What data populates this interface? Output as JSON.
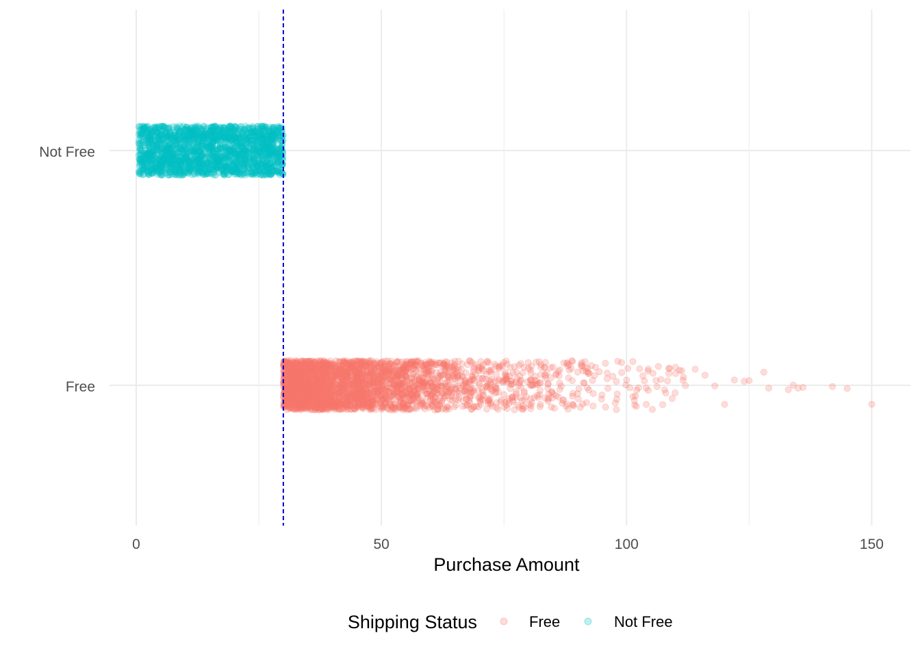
{
  "chart_data": {
    "type": "scatter",
    "subtype": "jitter-strip",
    "title": "",
    "xlabel": "Purchase Amount",
    "ylabel": "",
    "xlim": [
      -3.5,
      158
    ],
    "x_ticks": [
      0,
      50,
      100,
      150
    ],
    "x_tick_labels": [
      "0",
      "50",
      "100",
      "150"
    ],
    "categories": [
      "Free",
      "Not Free"
    ],
    "grid": true,
    "reference_line": {
      "x": 30,
      "style": "dashed",
      "color": "#0000cd"
    },
    "point_alpha": 0.25,
    "series": [
      {
        "name": "Free",
        "category": "Free",
        "color": "#F8766D",
        "x_range": [
          30,
          150
        ],
        "count_estimate": 3000,
        "distribution": "right-skewed, dense 30-60, sparse beyond 100",
        "sample_x": [
          31,
          33,
          35,
          38,
          40,
          42,
          45,
          48,
          50,
          55,
          60,
          65,
          70,
          75,
          80,
          85,
          88,
          90,
          92,
          95,
          98,
          100,
          102,
          104,
          106,
          108,
          110,
          112,
          114,
          116,
          118,
          120,
          122,
          124,
          125,
          128,
          129,
          133,
          134,
          135,
          136,
          142,
          145,
          150
        ]
      },
      {
        "name": "Not Free",
        "category": "Not Free",
        "color": "#00BFC4",
        "x_range": [
          0.5,
          30
        ],
        "count_estimate": 2000,
        "distribution": "roughly uniform 0.5-30"
      }
    ],
    "legend": {
      "title": "Shipping Status",
      "position": "bottom",
      "items": [
        {
          "label": "Free",
          "color": "#F8766D"
        },
        {
          "label": "Not Free",
          "color": "#00BFC4"
        }
      ]
    }
  }
}
